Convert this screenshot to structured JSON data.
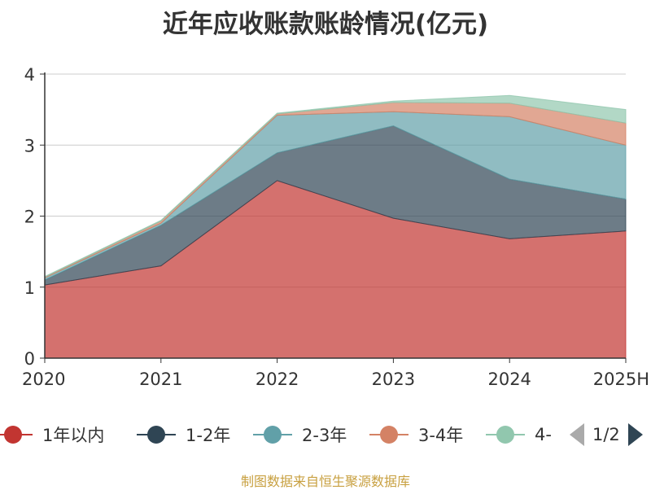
{
  "title": "近年应收账款账龄情况(亿元)",
  "source": "制图数据来自恒生聚源数据库",
  "pager": {
    "text": "1/2"
  },
  "colors": {
    "axis": "#333333",
    "grid": "#cccccc",
    "series": [
      "#c23531",
      "#2f4554",
      "#61a0a8",
      "#d48265",
      "#91c7ae"
    ]
  },
  "chart_data": {
    "type": "area",
    "stacked": true,
    "title": "近年应收账款账龄情况(亿元)",
    "categories": [
      "2020",
      "2021",
      "2022",
      "2023",
      "2024",
      "2025H"
    ],
    "ylim": [
      0,
      4
    ],
    "yticks": [
      "0",
      "1",
      "2",
      "3",
      "4"
    ],
    "grid": true,
    "legend_position": "bottom",
    "series": [
      {
        "name": "1年以内",
        "color": "#c23531",
        "values": [
          1.03,
          1.3,
          2.5,
          1.97,
          1.68,
          1.79
        ]
      },
      {
        "name": "1-2年",
        "color": "#2f4554",
        "values": [
          0.07,
          0.57,
          0.39,
          1.3,
          0.84,
          0.45
        ]
      },
      {
        "name": "2-3年",
        "color": "#61a0a8",
        "values": [
          0.03,
          0.03,
          0.53,
          0.2,
          0.88,
          0.76
        ]
      },
      {
        "name": "3-4年",
        "color": "#d48265",
        "values": [
          0.01,
          0.03,
          0.02,
          0.13,
          0.19,
          0.31
        ]
      },
      {
        "name": "4-",
        "color": "#91c7ae",
        "values": [
          0.01,
          0.01,
          0.01,
          0.02,
          0.11,
          0.19
        ]
      }
    ]
  }
}
